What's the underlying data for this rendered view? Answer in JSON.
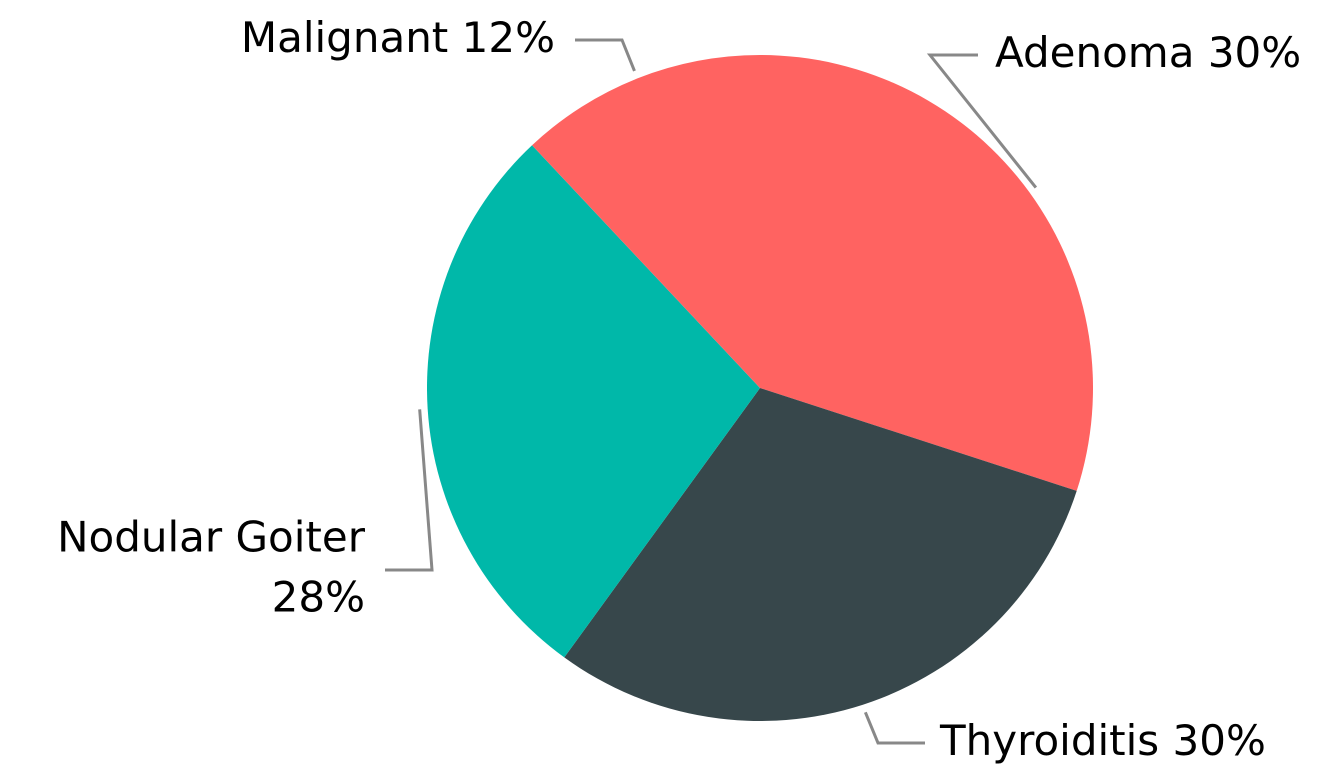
{
  "chart_data": {
    "type": "pie",
    "categories": [
      "Adenoma",
      "Thyroiditis",
      "Nodular Goiter",
      "Malignant"
    ],
    "values": [
      30,
      30,
      28,
      12
    ],
    "value_labels": [
      "30%",
      "30%",
      "28%",
      "12%"
    ],
    "colors": [
      "#ff6361",
      "#37474b",
      "#00b8a9",
      "#ff6361"
    ]
  }
}
